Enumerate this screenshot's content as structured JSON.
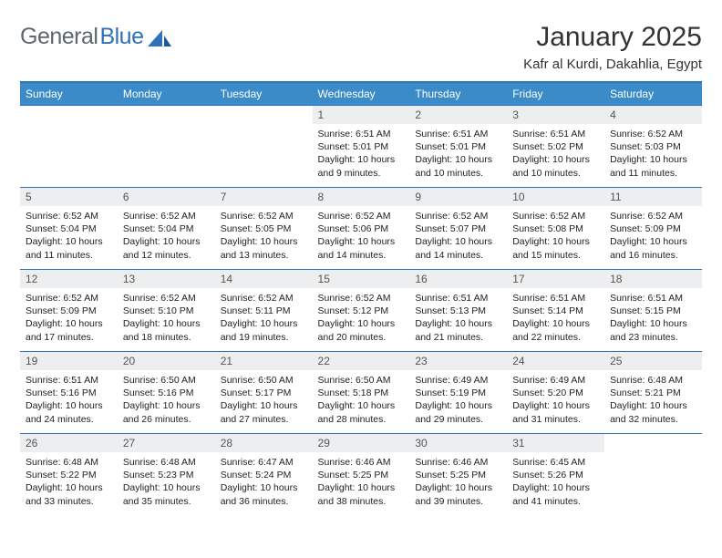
{
  "brand": {
    "word1": "General",
    "word2": "Blue"
  },
  "title": "January 2025",
  "location": "Kafr al Kurdi, Dakahlia, Egypt",
  "colors": {
    "header_bg": "#3b8bc9",
    "border": "#2f72b9",
    "daynum_bg": "#eceeef",
    "text": "#222222",
    "logo_gray": "#5c6770",
    "logo_blue": "#2f72b9"
  },
  "weekdays": [
    "Sunday",
    "Monday",
    "Tuesday",
    "Wednesday",
    "Thursday",
    "Friday",
    "Saturday"
  ],
  "weeks": [
    [
      null,
      null,
      null,
      {
        "n": "1",
        "sr": "Sunrise: 6:51 AM",
        "ss": "Sunset: 5:01 PM",
        "dl": "Daylight: 10 hours and 9 minutes."
      },
      {
        "n": "2",
        "sr": "Sunrise: 6:51 AM",
        "ss": "Sunset: 5:01 PM",
        "dl": "Daylight: 10 hours and 10 minutes."
      },
      {
        "n": "3",
        "sr": "Sunrise: 6:51 AM",
        "ss": "Sunset: 5:02 PM",
        "dl": "Daylight: 10 hours and 10 minutes."
      },
      {
        "n": "4",
        "sr": "Sunrise: 6:52 AM",
        "ss": "Sunset: 5:03 PM",
        "dl": "Daylight: 10 hours and 11 minutes."
      }
    ],
    [
      {
        "n": "5",
        "sr": "Sunrise: 6:52 AM",
        "ss": "Sunset: 5:04 PM",
        "dl": "Daylight: 10 hours and 11 minutes."
      },
      {
        "n": "6",
        "sr": "Sunrise: 6:52 AM",
        "ss": "Sunset: 5:04 PM",
        "dl": "Daylight: 10 hours and 12 minutes."
      },
      {
        "n": "7",
        "sr": "Sunrise: 6:52 AM",
        "ss": "Sunset: 5:05 PM",
        "dl": "Daylight: 10 hours and 13 minutes."
      },
      {
        "n": "8",
        "sr": "Sunrise: 6:52 AM",
        "ss": "Sunset: 5:06 PM",
        "dl": "Daylight: 10 hours and 14 minutes."
      },
      {
        "n": "9",
        "sr": "Sunrise: 6:52 AM",
        "ss": "Sunset: 5:07 PM",
        "dl": "Daylight: 10 hours and 14 minutes."
      },
      {
        "n": "10",
        "sr": "Sunrise: 6:52 AM",
        "ss": "Sunset: 5:08 PM",
        "dl": "Daylight: 10 hours and 15 minutes."
      },
      {
        "n": "11",
        "sr": "Sunrise: 6:52 AM",
        "ss": "Sunset: 5:09 PM",
        "dl": "Daylight: 10 hours and 16 minutes."
      }
    ],
    [
      {
        "n": "12",
        "sr": "Sunrise: 6:52 AM",
        "ss": "Sunset: 5:09 PM",
        "dl": "Daylight: 10 hours and 17 minutes."
      },
      {
        "n": "13",
        "sr": "Sunrise: 6:52 AM",
        "ss": "Sunset: 5:10 PM",
        "dl": "Daylight: 10 hours and 18 minutes."
      },
      {
        "n": "14",
        "sr": "Sunrise: 6:52 AM",
        "ss": "Sunset: 5:11 PM",
        "dl": "Daylight: 10 hours and 19 minutes."
      },
      {
        "n": "15",
        "sr": "Sunrise: 6:52 AM",
        "ss": "Sunset: 5:12 PM",
        "dl": "Daylight: 10 hours and 20 minutes."
      },
      {
        "n": "16",
        "sr": "Sunrise: 6:51 AM",
        "ss": "Sunset: 5:13 PM",
        "dl": "Daylight: 10 hours and 21 minutes."
      },
      {
        "n": "17",
        "sr": "Sunrise: 6:51 AM",
        "ss": "Sunset: 5:14 PM",
        "dl": "Daylight: 10 hours and 22 minutes."
      },
      {
        "n": "18",
        "sr": "Sunrise: 6:51 AM",
        "ss": "Sunset: 5:15 PM",
        "dl": "Daylight: 10 hours and 23 minutes."
      }
    ],
    [
      {
        "n": "19",
        "sr": "Sunrise: 6:51 AM",
        "ss": "Sunset: 5:16 PM",
        "dl": "Daylight: 10 hours and 24 minutes."
      },
      {
        "n": "20",
        "sr": "Sunrise: 6:50 AM",
        "ss": "Sunset: 5:16 PM",
        "dl": "Daylight: 10 hours and 26 minutes."
      },
      {
        "n": "21",
        "sr": "Sunrise: 6:50 AM",
        "ss": "Sunset: 5:17 PM",
        "dl": "Daylight: 10 hours and 27 minutes."
      },
      {
        "n": "22",
        "sr": "Sunrise: 6:50 AM",
        "ss": "Sunset: 5:18 PM",
        "dl": "Daylight: 10 hours and 28 minutes."
      },
      {
        "n": "23",
        "sr": "Sunrise: 6:49 AM",
        "ss": "Sunset: 5:19 PM",
        "dl": "Daylight: 10 hours and 29 minutes."
      },
      {
        "n": "24",
        "sr": "Sunrise: 6:49 AM",
        "ss": "Sunset: 5:20 PM",
        "dl": "Daylight: 10 hours and 31 minutes."
      },
      {
        "n": "25",
        "sr": "Sunrise: 6:48 AM",
        "ss": "Sunset: 5:21 PM",
        "dl": "Daylight: 10 hours and 32 minutes."
      }
    ],
    [
      {
        "n": "26",
        "sr": "Sunrise: 6:48 AM",
        "ss": "Sunset: 5:22 PM",
        "dl": "Daylight: 10 hours and 33 minutes."
      },
      {
        "n": "27",
        "sr": "Sunrise: 6:48 AM",
        "ss": "Sunset: 5:23 PM",
        "dl": "Daylight: 10 hours and 35 minutes."
      },
      {
        "n": "28",
        "sr": "Sunrise: 6:47 AM",
        "ss": "Sunset: 5:24 PM",
        "dl": "Daylight: 10 hours and 36 minutes."
      },
      {
        "n": "29",
        "sr": "Sunrise: 6:46 AM",
        "ss": "Sunset: 5:25 PM",
        "dl": "Daylight: 10 hours and 38 minutes."
      },
      {
        "n": "30",
        "sr": "Sunrise: 6:46 AM",
        "ss": "Sunset: 5:25 PM",
        "dl": "Daylight: 10 hours and 39 minutes."
      },
      {
        "n": "31",
        "sr": "Sunrise: 6:45 AM",
        "ss": "Sunset: 5:26 PM",
        "dl": "Daylight: 10 hours and 41 minutes."
      },
      null
    ]
  ]
}
